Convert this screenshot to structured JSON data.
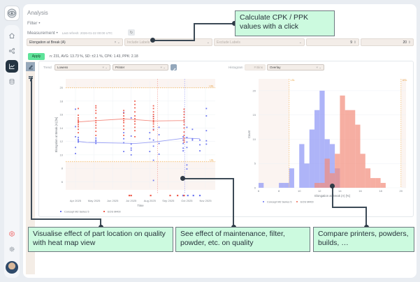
{
  "app": {
    "title": "Analysis"
  },
  "sidebar": {
    "items": [
      {
        "name": "home",
        "icon": "home-icon"
      },
      {
        "name": "workflow",
        "icon": "share-nodes-icon"
      },
      {
        "name": "analysis",
        "icon": "chart-line-icon",
        "active": true
      },
      {
        "name": "database",
        "icon": "database-icon"
      }
    ],
    "bottom": [
      {
        "name": "integration",
        "icon": "hub-icon"
      },
      {
        "name": "settings",
        "icon": "gear-icon"
      }
    ]
  },
  "filter": {
    "label": "Filter •"
  },
  "measurement": {
    "label": "Measurement •",
    "last_refresh": "Last refresh: 2026-01-22 00:00 UTC",
    "refresh_glyph": "↻",
    "selected": "Elongation at Break (A)",
    "include_placeholder": "Include Labels",
    "exclude_placeholder": "Exclude Labels",
    "lower_value": "9",
    "upper_value": "20",
    "clear_glyph": "× ⌄",
    "dropdown_glyph": "⌄",
    "spin_glyph": "⇕"
  },
  "apply_label": "Apply",
  "stats": "n: 231, AVG: 13.73 %, SD: ±2.1 %, CPK: 1.43, PPK: 2.18",
  "trend": {
    "label": "Trend",
    "smoothing": "Lowess",
    "group": "Printer"
  },
  "histogram": {
    "label": "Histogram",
    "bins_placeholder": "# Bins",
    "mode": "Overlay"
  },
  "chart_data": [
    {
      "type": "scatter",
      "title": "Trend",
      "xlabel": "Time",
      "ylabel": "Elongation at Break (A) [%]",
      "x_ticks": [
        "Apr 2025",
        "May 2025",
        "Jun 2025",
        "Jul 2025",
        "Aug 2025",
        "Sep 2025",
        "Oct 2025",
        "Nov 2025"
      ],
      "y_ticks": [
        6,
        8,
        10,
        12,
        14,
        16,
        18,
        20
      ],
      "ylim": [
        5,
        21
      ],
      "spec_limits": {
        "LSL": 9,
        "USL": 20,
        "lsl_label": "LSL",
        "usl_label": "USL"
      },
      "event_lines": [
        "2025-08-20",
        "2025-09-28"
      ],
      "legend": "bottom-left",
      "series": [
        {
          "name": "Concept M2 Series 5",
          "color": "#6b75f0",
          "trend_x": [
            0.15,
            0.6,
            2.6,
            3.2,
            4.2,
            5.9,
            6.7
          ],
          "trend_y": [
            12.0,
            11.85,
            11.75,
            11.7,
            11.9,
            12.5,
            12.4
          ],
          "points": [
            [
              0.0,
              16.8
            ],
            [
              0.0,
              14.2
            ],
            [
              0.0,
              12.7
            ],
            [
              0.0,
              11.1
            ],
            [
              0.0,
              10.2
            ],
            [
              0.15,
              12.6
            ],
            [
              0.15,
              12.3
            ],
            [
              0.15,
              12.1
            ],
            [
              0.15,
              11.9
            ],
            [
              1.1,
              12.5
            ],
            [
              1.1,
              12.2
            ],
            [
              1.1,
              12.0
            ],
            [
              1.1,
              11.7
            ],
            [
              2.6,
              16.3
            ],
            [
              2.6,
              13.3
            ],
            [
              2.6,
              12.4
            ],
            [
              2.6,
              11.8
            ],
            [
              2.6,
              10.5
            ],
            [
              3.0,
              15.5
            ],
            [
              3.0,
              12.8
            ],
            [
              3.0,
              11.6
            ],
            [
              3.0,
              11.0
            ],
            [
              3.0,
              10.7
            ],
            [
              3.0,
              10.0
            ],
            [
              4.0,
              13.3
            ],
            [
              4.0,
              12.4
            ],
            [
              4.0,
              10.5
            ],
            [
              4.2,
              15.7
            ],
            [
              4.2,
              13.8
            ],
            [
              4.2,
              12.2
            ],
            [
              4.2,
              11.3
            ],
            [
              4.2,
              9.2
            ],
            [
              4.2,
              6.2
            ],
            [
              4.5,
              14.1
            ],
            [
              4.5,
              13.0
            ],
            [
              4.5,
              11.7
            ],
            [
              4.5,
              10.1
            ],
            [
              5.8,
              12.7
            ],
            [
              5.8,
              12.2
            ],
            [
              5.8,
              11.7
            ],
            [
              5.8,
              11.0
            ],
            [
              5.8,
              10.6
            ],
            [
              6.0,
              14.1
            ],
            [
              6.0,
              12.6
            ],
            [
              6.0,
              11.9
            ],
            [
              6.0,
              11.1
            ],
            [
              6.0,
              8.5
            ],
            [
              6.0,
              7.9
            ],
            [
              6.3,
              13.8
            ],
            [
              6.3,
              12.2
            ],
            [
              6.3,
              12.4
            ],
            [
              6.7,
              12.2
            ],
            [
              6.7,
              11.5
            ],
            [
              6.7,
              10.6
            ],
            [
              7.05,
              16.9
            ],
            [
              7.05,
              15.8
            ],
            [
              7.05,
              13.6
            ],
            [
              7.05,
              12.1
            ],
            [
              7.05,
              11.6
            ]
          ],
          "out_of_spec_x": [
            5.8,
            6.05,
            6.35,
            6.7
          ]
        },
        {
          "name": "EOS M400",
          "color": "#ef5b4c",
          "trend_x": [
            0.15,
            1.1,
            2.6,
            3.2,
            4.2,
            5.5,
            5.85
          ],
          "trend_y": [
            14.9,
            15.1,
            15.35,
            15.25,
            15.05,
            15.1,
            15.1
          ],
          "points": [
            [
              0.15,
              16.9
            ],
            [
              0.15,
              15.9
            ],
            [
              0.15,
              15.5
            ],
            [
              0.15,
              15.2
            ],
            [
              0.15,
              15.0
            ],
            [
              0.15,
              14.8
            ],
            [
              0.15,
              14.5
            ],
            [
              0.15,
              14.2
            ],
            [
              0.15,
              13.8
            ],
            [
              0.15,
              13.3
            ],
            [
              1.1,
              17.3
            ],
            [
              1.1,
              17.0
            ],
            [
              1.1,
              16.6
            ],
            [
              1.1,
              16.2
            ],
            [
              1.1,
              15.5
            ],
            [
              1.1,
              15.1
            ],
            [
              1.1,
              14.8
            ],
            [
              1.1,
              14.4
            ],
            [
              1.1,
              14.0
            ],
            [
              1.1,
              13.5
            ],
            [
              1.1,
              12.9
            ],
            [
              2.6,
              16.6
            ],
            [
              2.6,
              16.2
            ],
            [
              2.6,
              15.8
            ],
            [
              2.6,
              15.4
            ],
            [
              2.6,
              15.1
            ],
            [
              2.6,
              14.8
            ],
            [
              2.6,
              14.3
            ],
            [
              2.6,
              13.8
            ],
            [
              2.6,
              12.9
            ],
            [
              3.2,
              18.0
            ],
            [
              3.2,
              17.5
            ],
            [
              3.2,
              17.0
            ],
            [
              3.2,
              16.4
            ],
            [
              3.2,
              15.8
            ],
            [
              3.2,
              15.4
            ],
            [
              3.2,
              15.0
            ],
            [
              3.2,
              14.6
            ],
            [
              3.2,
              14.1
            ],
            [
              3.2,
              13.6
            ],
            [
              3.2,
              12.7
            ],
            [
              4.2,
              17.3
            ],
            [
              4.2,
              16.9
            ],
            [
              4.2,
              16.4
            ],
            [
              4.2,
              16.0
            ],
            [
              4.2,
              15.7
            ],
            [
              4.2,
              15.4
            ],
            [
              4.2,
              15.1
            ],
            [
              4.2,
              14.9
            ],
            [
              4.2,
              14.6
            ],
            [
              4.2,
              14.2
            ],
            [
              4.2,
              13.7
            ],
            [
              5.85,
              16.8
            ],
            [
              5.85,
              16.4
            ],
            [
              5.85,
              16.0
            ],
            [
              5.85,
              15.6
            ],
            [
              5.85,
              15.2
            ],
            [
              5.85,
              14.9
            ],
            [
              5.85,
              14.5
            ],
            [
              5.85,
              14.0
            ],
            [
              5.85,
              13.4
            ],
            [
              5.85,
              12.9
            ],
            [
              5.85,
              12.5
            ],
            [
              5.85,
              12.2
            ],
            [
              5.85,
              11.9
            ]
          ],
          "out_of_spec_x": [
            2.9,
            3.0,
            4.05,
            5.1,
            5.5,
            5.85
          ]
        }
      ]
    },
    {
      "type": "bar",
      "mode": "overlay",
      "title": "Histogram",
      "xlabel": "Elongation at Break (A) [%]",
      "ylabel": "Count",
      "x_ticks": [
        6,
        8,
        10,
        12,
        14,
        16,
        18,
        20
      ],
      "y_ticks": [
        0,
        5,
        10,
        15,
        20
      ],
      "xlim": [
        6,
        20.5
      ],
      "ylim": [
        0,
        22
      ],
      "bin_width": 0.5,
      "spec_limits": {
        "LSL": 9,
        "USL": 20,
        "lsl_label": "LSL",
        "usl_label": "USL"
      },
      "legend": "bottom-left",
      "series": [
        {
          "name": "Concept M2 Series 5",
          "color": "#8c94f5",
          "bins_start": [
            6.0,
            8.0,
            8.5,
            9.0,
            10.0,
            10.5,
            11.0,
            11.5,
            12.0,
            12.5,
            13.0,
            13.5
          ],
          "counts": [
            1,
            1,
            1,
            4,
            9,
            5,
            12,
            16,
            20,
            10,
            9,
            4
          ]
        },
        {
          "name": "EOS M400",
          "color": "#f28b7a",
          "bins_start": [
            11.5,
            12.0,
            12.5,
            13.0,
            13.5,
            14.0,
            14.5,
            15.0,
            15.5,
            16.0,
            16.5,
            17.0,
            17.5,
            18.0
          ],
          "counts": [
            1,
            1,
            6,
            3,
            7,
            19,
            16,
            16,
            13,
            7,
            4,
            2,
            2,
            1
          ]
        }
      ]
    }
  ],
  "callouts": [
    {
      "text": "Calculate CPK / PPK values with a click"
    },
    {
      "text": "Visualise effect of part location on quality with heat map view"
    },
    {
      "text": "See effect of maintenance, filter, powder, etc. on quality"
    },
    {
      "text": "Compare printers, powders, builds, …"
    }
  ]
}
